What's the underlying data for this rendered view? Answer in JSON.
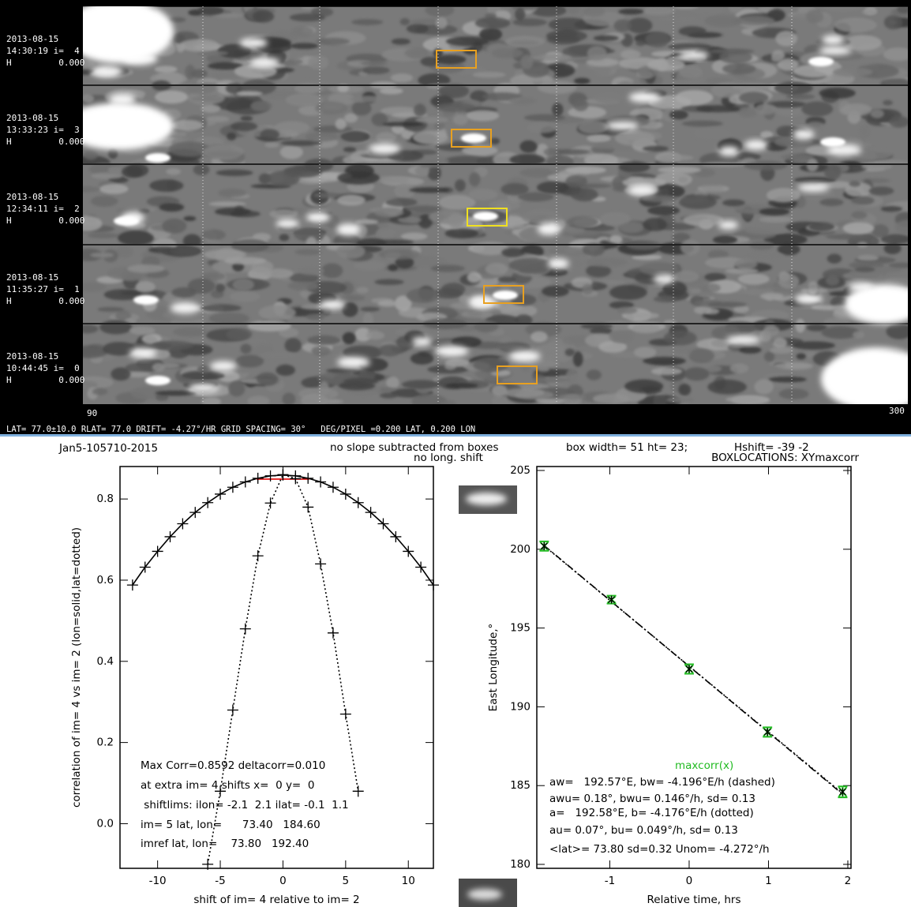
{
  "image_panels": [
    {
      "date": "2013-08-15",
      "time": "14:30:19 i=  4",
      "h": "H         0.000"
    },
    {
      "date": "2013-08-15",
      "time": "13:33:23 i=  3",
      "h": "H         0.000"
    },
    {
      "date": "2013-08-15",
      "time": "12:34:11 i=  2",
      "h": "H         0.000"
    },
    {
      "date": "2013-08-15",
      "time": "11:35:27 i=  1",
      "h": "H         0.000"
    },
    {
      "date": "2013-08-15",
      "time": "10:44:45 i=  0",
      "h": "H         0.000"
    }
  ],
  "image_footer": {
    "lon_start": 90,
    "lon_end": 300,
    "info": "LAT= 77.0±10.0 RLAT= 77.0 DRIFT= -4.27°/HR GRID SPACING= 30°   DEG/PIXEL =0.200 LAT, 0.200 LON"
  },
  "header": {
    "id": "Jan5-105710-2015",
    "note": "no slope subtracted from boxes",
    "shift_note": "no long. shift",
    "box": "box width= 51 ht= 23;",
    "hshift": "Hshift= -39 -2"
  },
  "chart_data": [
    {
      "type": "line",
      "xlabel": "shift of im= 4 relative to im= 2",
      "ylabel": "correlation of im= 4 vs im= 2 (lon=solid,lat=dotted)",
      "xlim": [
        -13,
        12
      ],
      "ylim": [
        -0.11,
        0.88
      ],
      "xticks": [
        -10,
        -5,
        0,
        5,
        10
      ],
      "yticks": [
        {
          "value": 0,
          "label": "0.0"
        },
        0.2,
        0.4,
        0.6,
        0.8
      ],
      "series": [
        {
          "color": "#000000",
          "line": "solid",
          "marker": "plus",
          "x": [
            -12,
            -11,
            -10,
            -9,
            -8,
            -7,
            -6,
            -5,
            -4,
            -3,
            -2,
            -1,
            0,
            1,
            2,
            3,
            4,
            5,
            6,
            7,
            8,
            9,
            10,
            11,
            12
          ],
          "values": [
            0.588,
            0.632,
            0.671,
            0.707,
            0.739,
            0.767,
            0.791,
            0.812,
            0.829,
            0.842,
            0.851,
            0.857,
            0.859,
            0.857,
            0.851,
            0.842,
            0.829,
            0.812,
            0.791,
            0.767,
            0.739,
            0.707,
            0.671,
            0.632,
            0.588
          ]
        },
        {
          "color": "#000000",
          "line": "dotted",
          "marker": "plus",
          "x": [
            -6,
            -5,
            -4,
            -3,
            -2,
            -1,
            0,
            1,
            2,
            3,
            4,
            5,
            6
          ],
          "values": [
            -0.1,
            0.08,
            0.28,
            0.48,
            0.66,
            0.79,
            0.86,
            0.85,
            0.78,
            0.64,
            0.47,
            0.27,
            0.08
          ]
        },
        {
          "color": "#e00000",
          "line": "solid",
          "x": [
            -2.1,
            2.1
          ],
          "values": [
            0.849,
            0.849
          ]
        }
      ],
      "annotations": [
        "Max Corr=0.8592 deltacorr=0.010",
        "at extra im= 4 shifts x=  0 y=  0",
        " shiftlims: ilon= -2.1  2.1 ilat= -0.1  1.1",
        "im= 5 lat, lon=      73.40   184.60",
        "imref lat, lon=    73.80   192.40"
      ]
    },
    {
      "type": "scatter",
      "title": "BOXLOCATIONS: XYmaxcorr",
      "xlabel": "Relative time, hrs",
      "ylabel": "East Longitude,°",
      "xlim": [
        -1.92,
        2.04
      ],
      "ylim": [
        179.75,
        205.25
      ],
      "xticks": [
        -1,
        0,
        1,
        2
      ],
      "yticks": [
        180,
        185,
        190,
        195,
        200,
        205
      ],
      "series": [
        {
          "color": "#000000",
          "line": "dashed",
          "x": [
            -1.827,
            1.935
          ],
          "values": [
            200.236,
            184.45
          ]
        },
        {
          "color": "#000000",
          "line": "dotted",
          "x": [
            -1.827,
            1.935
          ],
          "values": [
            200.21,
            184.5
          ]
        },
        {
          "name": "maxcorr(x)",
          "color": "#22bb22",
          "marker": "errorbar",
          "x": [
            -1.827,
            -0.979,
            0,
            0.987,
            1.935
          ],
          "values": [
            200.2,
            196.8,
            192.4,
            188.4,
            184.6
          ],
          "errors": [
            0.3,
            0.25,
            0.3,
            0.3,
            0.35
          ]
        }
      ],
      "annotations": [
        "aw=   192.57°E, bw= -4.196°E/h (dashed)",
        "awu= 0.18°, bwu= 0.146°/h, sd= 0.13",
        "a=   192.58°E, b= -4.176°E/h (dotted)",
        "au= 0.07°, bu= 0.049°/h, sd= 0.13",
        "<lat>= 73.80 sd=0.32 Unom= -4.272°/h"
      ]
    }
  ]
}
